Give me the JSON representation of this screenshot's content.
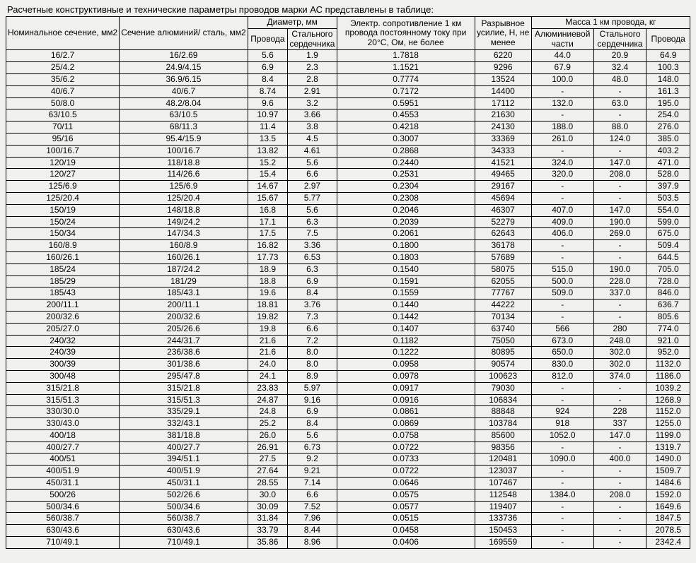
{
  "caption": "Расчетные конструктивные и технические параметры проводов марки АС представлены в таблице:",
  "headers": {
    "nominal": "Номинальное сечение, мм2",
    "cross": "Сечение алюминий/ сталь, мм2",
    "diam_group": "Диаметр, мм",
    "diam_wire": "Провода",
    "diam_core": "Стального сердечника",
    "resist": "Электр. сопротивление 1 км провода постоянному току при 20°С, Ом, не более",
    "force": "Разрывное усилие, Н, не менее",
    "mass_group": "Масса 1 км провода, кг",
    "mass_al": "Алюминиевой части",
    "mass_core": "Стального сердечника",
    "mass_wire": "Провода"
  },
  "rows": [
    [
      "16/2.7",
      "16/2.69",
      "5.6",
      "1.9",
      "1.7818",
      "6220",
      "44.0",
      "20.9",
      "64.9"
    ],
    [
      "25/4.2",
      "24.9/4.15",
      "6.9",
      "2.3",
      "1.1521",
      "9296",
      "67.9",
      "32.4",
      "100.3"
    ],
    [
      "35/6.2",
      "36.9/6.15",
      "8.4",
      "2.8",
      "0.7774",
      "13524",
      "100.0",
      "48.0",
      "148.0"
    ],
    [
      "40/6.7",
      "40/6.7",
      "8.74",
      "2.91",
      "0.7172",
      "14400",
      "-",
      "-",
      "161.3"
    ],
    [
      "50/8.0",
      "48.2/8.04",
      "9.6",
      "3.2",
      "0.5951",
      "17112",
      "132.0",
      "63.0",
      "195.0"
    ],
    [
      "63/10.5",
      "63/10.5",
      "10.97",
      "3.66",
      "0.4553",
      "21630",
      "-",
      "-",
      "254.0"
    ],
    [
      "70/11",
      "68/11.3",
      "11.4",
      "3.8",
      "0.4218",
      "24130",
      "188.0",
      "88.0",
      "276.0"
    ],
    [
      "95/16",
      "95.4/15.9",
      "13.5",
      "4.5",
      "0.3007",
      "33369",
      "261.0",
      "124.0",
      "385.0"
    ],
    [
      "100/16.7",
      "100/16.7",
      "13.82",
      "4.61",
      "0.2868",
      "34333",
      "-",
      "-",
      "403.2"
    ],
    [
      "120/19",
      "118/18.8",
      "15.2",
      "5.6",
      "0.2440",
      "41521",
      "324.0",
      "147.0",
      "471.0"
    ],
    [
      "120/27",
      "114/26.6",
      "15.4",
      "6.6",
      "0.2531",
      "49465",
      "320.0",
      "208.0",
      "528.0"
    ],
    [
      "125/6.9",
      "125/6.9",
      "14.67",
      "2.97",
      "0.2304",
      "29167",
      "-",
      "-",
      "397.9"
    ],
    [
      "125/20.4",
      "125/20.4",
      "15.67",
      "5.77",
      "0.2308",
      "45694",
      "-",
      "-",
      "503.5"
    ],
    [
      "150/19",
      "148/18.8",
      "16.8",
      "5.6",
      "0.2046",
      "46307",
      "407.0",
      "147.0",
      "554.0"
    ],
    [
      "150/24",
      "149/24.2",
      "17.1",
      "6.3",
      "0.2039",
      "52279",
      "409.0",
      "190.0",
      "599.0"
    ],
    [
      "150/34",
      "147/34.3",
      "17.5",
      "7.5",
      "0.2061",
      "62643",
      "406.0",
      "269.0",
      "675.0"
    ],
    [
      "160/8.9",
      "160/8.9",
      "16.82",
      "3.36",
      "0.1800",
      "36178",
      "-",
      "-",
      "509.4"
    ],
    [
      "160/26.1",
      "160/26.1",
      "17.73",
      "6.53",
      "0.1803",
      "57689",
      "-",
      "-",
      "644.5"
    ],
    [
      "185/24",
      "187/24.2",
      "18.9",
      "6.3",
      "0.1540",
      "58075",
      "515.0",
      "190.0",
      "705.0"
    ],
    [
      "185/29",
      "181/29",
      "18.8",
      "6.9",
      "0.1591",
      "62055",
      "500.0",
      "228.0",
      "728.0"
    ],
    [
      "185/43",
      "185/43.1",
      "19.6",
      "8.4",
      "0.1559",
      "77767",
      "509.0",
      "337.0",
      "846.0"
    ],
    [
      "200/11.1",
      "200/11.1",
      "18.81",
      "3.76",
      "0.1440",
      "44222",
      "-",
      "-",
      "636.7"
    ],
    [
      "200/32.6",
      "200/32.6",
      "19.82",
      "7.3",
      "0.1442",
      "70134",
      "-",
      "-",
      "805.6"
    ],
    [
      "205/27.0",
      "205/26.6",
      "19.8",
      "6.6",
      "0.1407",
      "63740",
      "566",
      "280",
      "774.0"
    ],
    [
      "240/32",
      "244/31.7",
      "21.6",
      "7.2",
      "0.1182",
      "75050",
      "673.0",
      "248.0",
      "921.0"
    ],
    [
      "240/39",
      "236/38.6",
      "21.6",
      "8.0",
      "0.1222",
      "80895",
      "650.0",
      "302.0",
      "952.0"
    ],
    [
      "300/39",
      "301/38.6",
      "24.0",
      "8.0",
      "0.0958",
      "90574",
      "830.0",
      "302.0",
      "1132.0"
    ],
    [
      "300/48",
      "295/47.8",
      "24.1",
      "8.9",
      "0.0978",
      "100623",
      "812.0",
      "374.0",
      "1186.0"
    ],
    [
      "315/21.8",
      "315/21.8",
      "23.83",
      "5.97",
      "0.0917",
      "79030",
      "-",
      "-",
      "1039.2"
    ],
    [
      "315/51.3",
      "315/51.3",
      "24.87",
      "9.16",
      "0.0916",
      "106834",
      "-",
      "-",
      "1268.9"
    ],
    [
      "330/30.0",
      "335/29.1",
      "24.8",
      "6.9",
      "0.0861",
      "88848",
      "924",
      "228",
      "1152.0"
    ],
    [
      "330/43.0",
      "332/43.1",
      "25.2",
      "8.4",
      "0.0869",
      "103784",
      "918",
      "337",
      "1255.0"
    ],
    [
      "400/18",
      "381/18.8",
      "26.0",
      "5.6",
      "0.0758",
      "85600",
      "1052.0",
      "147.0",
      "1199.0"
    ],
    [
      "400/27.7",
      "400/27.7",
      "26.91",
      "6.73",
      "0.0722",
      "98356",
      "-",
      "-",
      "1319.7"
    ],
    [
      "400/51",
      "394/51.1",
      "27.5",
      "9.2",
      "0.0733",
      "120481",
      "1090.0",
      "400.0",
      "1490.0"
    ],
    [
      "400/51.9",
      "400/51.9",
      "27.64",
      "9.21",
      "0.0722",
      "123037",
      "-",
      "-",
      "1509.7"
    ],
    [
      "450/31.1",
      "450/31.1",
      "28.55",
      "7.14",
      "0.0646",
      "107467",
      "-",
      "-",
      "1484.6"
    ],
    [
      "500/26",
      "502/26.6",
      "30.0",
      "6.6",
      "0.0575",
      "112548",
      "1384.0",
      "208.0",
      "1592.0"
    ],
    [
      "500/34.6",
      "500/34.6",
      "30.09",
      "7.52",
      "0.0577",
      "119407",
      "-",
      "-",
      "1649.6"
    ],
    [
      "560/38.7",
      "560/38.7",
      "31.84",
      "7.96",
      "0.0515",
      "133736",
      "-",
      "-",
      "1847.5"
    ],
    [
      "630/43.6",
      "630/43.6",
      "33.79",
      "8.44",
      "0.0458",
      "150453",
      "-",
      "-",
      "2078.5"
    ],
    [
      "710/49.1",
      "710/49.1",
      "35.86",
      "8.96",
      "0.0406",
      "169559",
      "-",
      "-",
      "2342.4"
    ]
  ]
}
